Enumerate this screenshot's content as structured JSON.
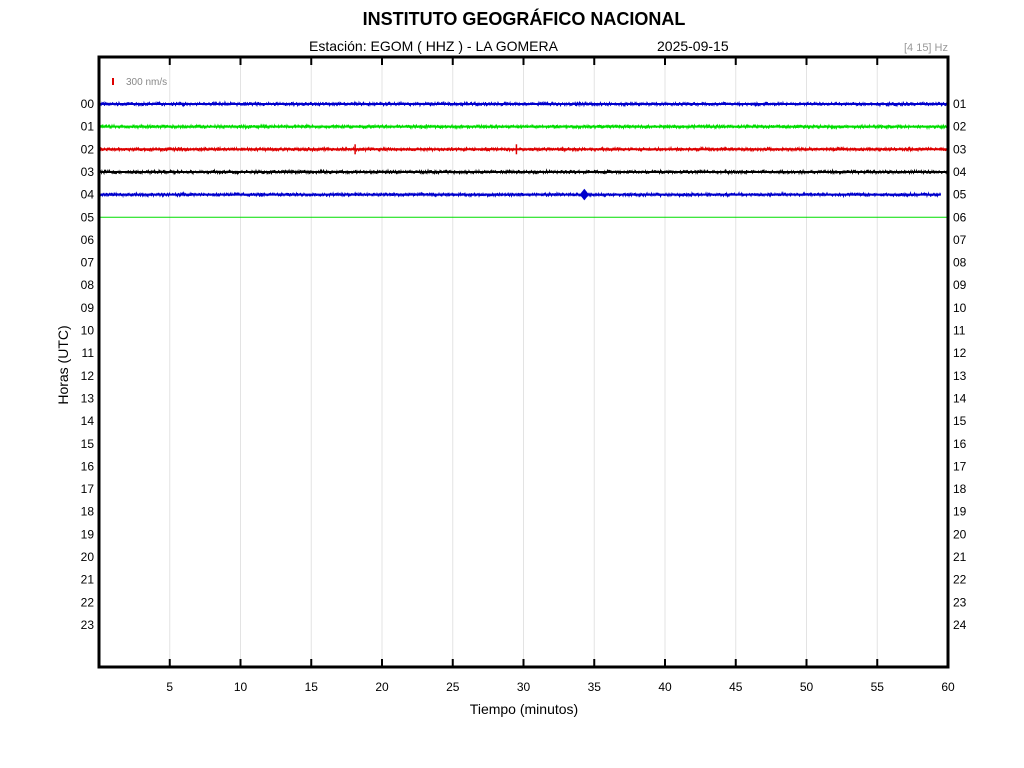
{
  "header": {
    "title": "INSTITUTO GEOGRÁFICO NACIONAL",
    "station": "Estación:  EGOM ( HHZ ) - LA GOMERA",
    "date": "2025-09-15",
    "filter": "[4 15] Hz"
  },
  "chart_data": {
    "type": "line",
    "title": "INSTITUTO GEOGRÁFICO NACIONAL",
    "xlabel": "Tiempo (minutos)",
    "ylabel": "Horas (UTC)",
    "xlim": [
      0,
      60
    ],
    "x_ticks": [
      "5",
      "10",
      "15",
      "20",
      "25",
      "30",
      "35",
      "40",
      "45",
      "50",
      "55",
      "60"
    ],
    "y_ticks_left": [
      "00",
      "01",
      "02",
      "03",
      "04",
      "05",
      "06",
      "07",
      "08",
      "09",
      "10",
      "11",
      "12",
      "13",
      "14",
      "15",
      "16",
      "17",
      "18",
      "19",
      "20",
      "21",
      "22",
      "23"
    ],
    "y_ticks_right": [
      "01",
      "02",
      "03",
      "04",
      "05",
      "06",
      "07",
      "08",
      "09",
      "10",
      "11",
      "12",
      "13",
      "14",
      "15",
      "16",
      "17",
      "18",
      "19",
      "20",
      "21",
      "22",
      "23",
      "24"
    ],
    "scale_label": "300 nm/s",
    "scale_color": "#dd0000",
    "grid": true,
    "traces": [
      {
        "hour": "00",
        "color": "#0000cc",
        "start_min": 0,
        "end_min": 60,
        "events": []
      },
      {
        "hour": "01",
        "color": "#00dd00",
        "start_min": 0,
        "end_min": 60,
        "events": []
      },
      {
        "hour": "02",
        "color": "#dd0000",
        "start_min": 0,
        "end_min": 60,
        "events": [
          18.1,
          29.5
        ]
      },
      {
        "hour": "03",
        "color": "#000000",
        "start_min": 0,
        "end_min": 60,
        "events": []
      },
      {
        "hour": "04",
        "color": "#0000cc",
        "start_min": 0,
        "end_min": 59.5,
        "events": [
          34.3
        ]
      },
      {
        "hour": "05",
        "color": "#00dd00",
        "start_min": 0,
        "end_min": 60,
        "events": [],
        "flat": true
      }
    ]
  }
}
